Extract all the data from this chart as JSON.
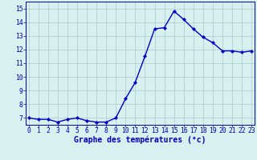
{
  "hours": [
    0,
    1,
    2,
    3,
    4,
    5,
    6,
    7,
    8,
    9,
    10,
    11,
    12,
    13,
    14,
    15,
    16,
    17,
    18,
    19,
    20,
    21,
    22,
    23
  ],
  "temps": [
    7.0,
    6.9,
    6.9,
    6.7,
    6.9,
    7.0,
    6.8,
    6.7,
    6.7,
    7.0,
    8.4,
    9.6,
    11.5,
    13.5,
    13.6,
    14.8,
    14.2,
    13.5,
    12.9,
    12.5,
    11.9,
    11.9,
    11.8,
    11.9
  ],
  "line_color": "#0000cc",
  "marker": "D",
  "marker_size": 2.0,
  "bg_color": "#d8f0f0",
  "grid_color": "#aacccc",
  "xlabel": "Graphe des températures (°c)",
  "ylabel_vals": [
    7,
    8,
    9,
    10,
    11,
    12,
    13,
    14,
    15
  ],
  "ylim": [
    6.5,
    15.5
  ],
  "xlim": [
    -0.3,
    23.3
  ],
  "label_color": "#0000bb",
  "tick_fontsize": 5.8,
  "xlabel_fontsize": 7.0,
  "xlabel_fontweight": "bold",
  "linewidth": 1.0
}
